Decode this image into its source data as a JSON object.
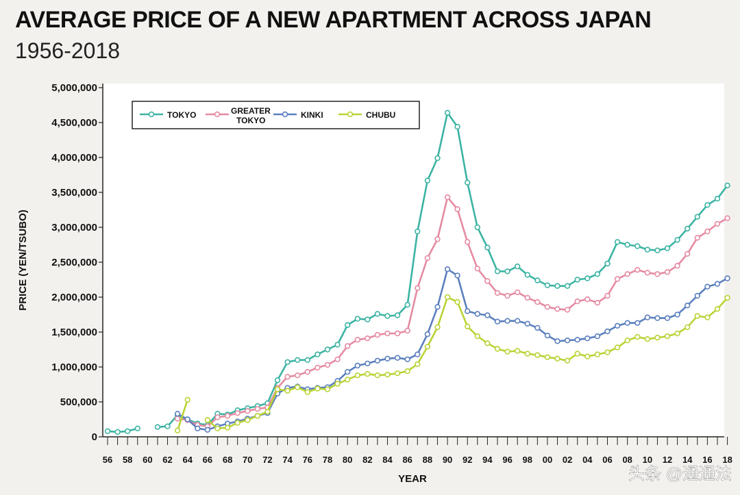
{
  "header": {
    "title": "AVERAGE PRICE OF A NEW APARTMENT ACROSS JAPAN",
    "subtitle": "1956-2018"
  },
  "watermark": "头条 @通通法",
  "chart_data": {
    "type": "line",
    "xlabel": "YEAR",
    "ylabel": "PRICE (YEN/TSUBO)",
    "xlim": [
      1956,
      2018
    ],
    "ylim": [
      0,
      5000000
    ],
    "y_ticks": [
      0,
      500000,
      1000000,
      1500000,
      2000000,
      2500000,
      3000000,
      3500000,
      4000000,
      4500000,
      5000000
    ],
    "y_tick_labels": [
      "0",
      "500,000",
      "1,000,000",
      "1,500,000",
      "2,000,000",
      "2,500,000",
      "3,000,000",
      "3,500,000",
      "4,000,000",
      "4,500,000",
      "5,000,000"
    ],
    "x_ticks": [
      1956,
      1958,
      1960,
      1962,
      1964,
      1966,
      1968,
      1970,
      1972,
      1974,
      1976,
      1978,
      1980,
      1982,
      1984,
      1986,
      1988,
      1990,
      1992,
      1994,
      1996,
      1998,
      2000,
      2002,
      2004,
      2006,
      2008,
      2010,
      2012,
      2014,
      2016,
      2018
    ],
    "x_tick_labels": [
      "56",
      "58",
      "60",
      "62",
      "64",
      "66",
      "68",
      "70",
      "72",
      "74",
      "76",
      "78",
      "80",
      "82",
      "84",
      "86",
      "88",
      "90",
      "92",
      "94",
      "96",
      "98",
      "00",
      "02",
      "04",
      "06",
      "08",
      "10",
      "12",
      "14",
      "16",
      "18"
    ],
    "grid": false,
    "legend_position": "top-left",
    "series": [
      {
        "name": "TOKYO",
        "legend_label": [
          "TOKYO"
        ],
        "color": "#3bb3a3",
        "segments": [
          [
            [
              1956,
              80000
            ],
            [
              1957,
              70000
            ],
            [
              1958,
              80000
            ],
            [
              1959,
              120000
            ]
          ],
          [
            [
              1961,
              140000
            ],
            [
              1962,
              150000
            ],
            [
              1963,
              310000
            ],
            [
              1964,
              250000
            ],
            [
              1965,
              190000
            ],
            [
              1966,
              170000
            ],
            [
              1967,
              330000
            ],
            [
              1968,
              320000
            ],
            [
              1969,
              380000
            ],
            [
              1970,
              410000
            ],
            [
              1971,
              440000
            ],
            [
              1972,
              480000
            ],
            [
              1973,
              810000
            ],
            [
              1974,
              1070000
            ],
            [
              1975,
              1100000
            ],
            [
              1976,
              1100000
            ],
            [
              1977,
              1180000
            ],
            [
              1978,
              1250000
            ],
            [
              1979,
              1320000
            ],
            [
              1980,
              1600000
            ],
            [
              1981,
              1690000
            ],
            [
              1982,
              1680000
            ],
            [
              1983,
              1760000
            ],
            [
              1984,
              1730000
            ],
            [
              1985,
              1740000
            ],
            [
              1986,
              1890000
            ],
            [
              1987,
              2940000
            ],
            [
              1988,
              3670000
            ],
            [
              1989,
              3990000
            ],
            [
              1990,
              4640000
            ],
            [
              1991,
              4440000
            ],
            [
              1992,
              3640000
            ],
            [
              1993,
              3000000
            ],
            [
              1994,
              2710000
            ],
            [
              1995,
              2370000
            ],
            [
              1996,
              2370000
            ],
            [
              1997,
              2440000
            ],
            [
              1998,
              2320000
            ],
            [
              1999,
              2240000
            ],
            [
              2000,
              2170000
            ],
            [
              2001,
              2160000
            ],
            [
              2002,
              2160000
            ],
            [
              2003,
              2250000
            ],
            [
              2004,
              2270000
            ],
            [
              2005,
              2330000
            ],
            [
              2006,
              2480000
            ],
            [
              2007,
              2790000
            ],
            [
              2008,
              2750000
            ],
            [
              2009,
              2730000
            ],
            [
              2010,
              2680000
            ],
            [
              2011,
              2670000
            ],
            [
              2012,
              2700000
            ],
            [
              2013,
              2820000
            ],
            [
              2014,
              2980000
            ],
            [
              2015,
              3150000
            ],
            [
              2016,
              3320000
            ],
            [
              2017,
              3410000
            ],
            [
              2018,
              3600000
            ]
          ]
        ]
      },
      {
        "name": "GREATER TOKYO",
        "legend_label": [
          "GREATER",
          "TOKYO"
        ],
        "color": "#e58aa1",
        "segments": [
          [
            [
              1963,
              260000
            ],
            [
              1964,
              240000
            ],
            [
              1965,
              170000
            ],
            [
              1966,
              150000
            ],
            [
              1967,
              280000
            ],
            [
              1968,
              300000
            ],
            [
              1969,
              340000
            ],
            [
              1970,
              370000
            ],
            [
              1971,
              400000
            ],
            [
              1972,
              420000
            ],
            [
              1973,
              700000
            ],
            [
              1974,
              860000
            ],
            [
              1975,
              880000
            ],
            [
              1976,
              930000
            ],
            [
              1977,
              990000
            ],
            [
              1978,
              1030000
            ],
            [
              1979,
              1110000
            ],
            [
              1980,
              1300000
            ],
            [
              1981,
              1390000
            ],
            [
              1982,
              1410000
            ],
            [
              1983,
              1460000
            ],
            [
              1984,
              1480000
            ],
            [
              1985,
              1480000
            ],
            [
              1986,
              1520000
            ],
            [
              1987,
              2130000
            ],
            [
              1988,
              2560000
            ],
            [
              1989,
              2830000
            ],
            [
              1990,
              3430000
            ],
            [
              1991,
              3260000
            ],
            [
              1992,
              2790000
            ],
            [
              1993,
              2410000
            ],
            [
              1994,
              2230000
            ],
            [
              1995,
              2060000
            ],
            [
              1996,
              2020000
            ],
            [
              1997,
              2070000
            ],
            [
              1998,
              1990000
            ],
            [
              1999,
              1930000
            ],
            [
              2000,
              1860000
            ],
            [
              2001,
              1830000
            ],
            [
              2002,
              1820000
            ],
            [
              2003,
              1940000
            ],
            [
              2004,
              1970000
            ],
            [
              2005,
              1920000
            ],
            [
              2006,
              2020000
            ],
            [
              2007,
              2260000
            ],
            [
              2008,
              2330000
            ],
            [
              2009,
              2390000
            ],
            [
              2010,
              2350000
            ],
            [
              2011,
              2330000
            ],
            [
              2012,
              2360000
            ],
            [
              2013,
              2450000
            ],
            [
              2014,
              2620000
            ],
            [
              2015,
              2850000
            ],
            [
              2016,
              2940000
            ],
            [
              2017,
              3050000
            ],
            [
              2018,
              3130000
            ]
          ]
        ]
      },
      {
        "name": "KINKI",
        "legend_label": [
          "KINKI"
        ],
        "color": "#5b7fbd",
        "segments": [
          [
            [
              1963,
              330000
            ],
            [
              1964,
              250000
            ],
            [
              1965,
              120000
            ],
            [
              1966,
              100000
            ],
            [
              1967,
              150000
            ],
            [
              1968,
              190000
            ],
            [
              1969,
              220000
            ],
            [
              1970,
              260000
            ],
            [
              1971,
              300000
            ],
            [
              1972,
              340000
            ],
            [
              1973,
              620000
            ],
            [
              1974,
              700000
            ],
            [
              1975,
              720000
            ],
            [
              1976,
              680000
            ],
            [
              1977,
              700000
            ],
            [
              1978,
              710000
            ],
            [
              1979,
              800000
            ],
            [
              1980,
              930000
            ],
            [
              1981,
              1020000
            ],
            [
              1982,
              1050000
            ],
            [
              1983,
              1090000
            ],
            [
              1984,
              1120000
            ],
            [
              1985,
              1130000
            ],
            [
              1986,
              1110000
            ],
            [
              1987,
              1180000
            ],
            [
              1988,
              1470000
            ],
            [
              1989,
              1860000
            ],
            [
              1990,
              2400000
            ],
            [
              1991,
              2310000
            ],
            [
              1992,
              1800000
            ],
            [
              1993,
              1760000
            ],
            [
              1994,
              1740000
            ],
            [
              1995,
              1650000
            ],
            [
              1996,
              1660000
            ],
            [
              1997,
              1660000
            ],
            [
              1998,
              1620000
            ],
            [
              1999,
              1560000
            ],
            [
              2000,
              1450000
            ],
            [
              2001,
              1370000
            ],
            [
              2002,
              1380000
            ],
            [
              2003,
              1390000
            ],
            [
              2004,
              1410000
            ],
            [
              2005,
              1440000
            ],
            [
              2006,
              1510000
            ],
            [
              2007,
              1590000
            ],
            [
              2008,
              1630000
            ],
            [
              2009,
              1630000
            ],
            [
              2010,
              1710000
            ],
            [
              2011,
              1700000
            ],
            [
              2012,
              1700000
            ],
            [
              2013,
              1750000
            ],
            [
              2014,
              1880000
            ],
            [
              2015,
              2020000
            ],
            [
              2016,
              2150000
            ],
            [
              2017,
              2190000
            ],
            [
              2018,
              2270000
            ]
          ]
        ]
      },
      {
        "name": "CHUBU",
        "legend_label": [
          "CHUBU"
        ],
        "color": "#b9d334",
        "segments": [
          [
            [
              1963,
              90000
            ],
            [
              1964,
              530000
            ]
          ],
          [
            [
              1966,
              240000
            ],
            [
              1967,
              120000
            ],
            [
              1968,
              130000
            ],
            [
              1969,
              200000
            ],
            [
              1970,
              240000
            ],
            [
              1971,
              300000
            ],
            [
              1972,
              360000
            ],
            [
              1973,
              680000
            ],
            [
              1974,
              660000
            ],
            [
              1975,
              710000
            ],
            [
              1976,
              640000
            ],
            [
              1977,
              690000
            ],
            [
              1978,
              680000
            ],
            [
              1979,
              760000
            ],
            [
              1980,
              820000
            ],
            [
              1981,
              880000
            ],
            [
              1982,
              900000
            ],
            [
              1983,
              880000
            ],
            [
              1984,
              890000
            ],
            [
              1985,
              910000
            ],
            [
              1986,
              940000
            ],
            [
              1987,
              1040000
            ],
            [
              1988,
              1290000
            ],
            [
              1989,
              1570000
            ],
            [
              1990,
              2000000
            ],
            [
              1991,
              1930000
            ],
            [
              1992,
              1580000
            ],
            [
              1993,
              1440000
            ],
            [
              1994,
              1340000
            ],
            [
              1995,
              1260000
            ],
            [
              1996,
              1220000
            ],
            [
              1997,
              1230000
            ],
            [
              1998,
              1190000
            ],
            [
              1999,
              1170000
            ],
            [
              2000,
              1140000
            ],
            [
              2001,
              1120000
            ],
            [
              2002,
              1090000
            ],
            [
              2003,
              1190000
            ],
            [
              2004,
              1150000
            ],
            [
              2005,
              1180000
            ],
            [
              2006,
              1210000
            ],
            [
              2007,
              1280000
            ],
            [
              2008,
              1380000
            ],
            [
              2009,
              1430000
            ],
            [
              2010,
              1400000
            ],
            [
              2011,
              1420000
            ],
            [
              2012,
              1440000
            ],
            [
              2013,
              1480000
            ],
            [
              2014,
              1570000
            ],
            [
              2015,
              1730000
            ],
            [
              2016,
              1710000
            ],
            [
              2017,
              1830000
            ],
            [
              2018,
              1990000
            ]
          ]
        ]
      }
    ]
  }
}
